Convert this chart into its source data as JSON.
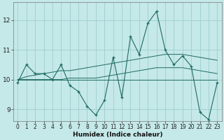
{
  "xlabel": "Humidex (Indice chaleur)",
  "bg_color": "#c5e8e8",
  "grid_color": "#9ecece",
  "line_color": "#1e6b62",
  "xlim": [
    -0.5,
    23.5
  ],
  "ylim": [
    8.6,
    12.6
  ],
  "yticks": [
    9,
    10,
    11,
    12
  ],
  "xticks": [
    0,
    1,
    2,
    3,
    4,
    5,
    6,
    7,
    8,
    9,
    10,
    11,
    12,
    13,
    14,
    15,
    16,
    17,
    18,
    19,
    20,
    21,
    22,
    23
  ],
  "series_main": [
    9.9,
    10.5,
    10.2,
    10.2,
    10.0,
    10.5,
    9.8,
    9.6,
    9.1,
    8.8,
    9.3,
    10.75,
    9.4,
    11.45,
    10.85,
    11.9,
    12.3,
    11.0,
    10.5,
    10.8,
    10.45,
    8.9,
    8.65,
    9.9
  ],
  "series_upper": [
    10.0,
    10.1,
    10.15,
    10.2,
    10.25,
    10.3,
    10.3,
    10.35,
    10.4,
    10.45,
    10.5,
    10.55,
    10.6,
    10.65,
    10.7,
    10.75,
    10.8,
    10.85,
    10.85,
    10.85,
    10.8,
    10.75,
    10.7,
    10.65
  ],
  "series_lower": [
    10.0,
    10.0,
    10.0,
    10.0,
    10.0,
    10.0,
    10.05,
    10.05,
    10.05,
    10.05,
    10.1,
    10.15,
    10.2,
    10.25,
    10.3,
    10.35,
    10.4,
    10.4,
    10.4,
    10.4,
    10.35,
    10.3,
    10.25,
    10.2
  ],
  "series_flat": [
    10.0,
    10.0,
    10.0,
    10.0,
    10.0,
    10.0,
    10.0,
    10.0,
    10.0,
    10.0,
    10.0,
    10.0,
    10.0,
    10.0,
    10.0,
    10.0,
    10.0,
    10.0,
    10.0,
    10.0,
    10.0,
    10.0,
    10.0,
    10.0
  ]
}
